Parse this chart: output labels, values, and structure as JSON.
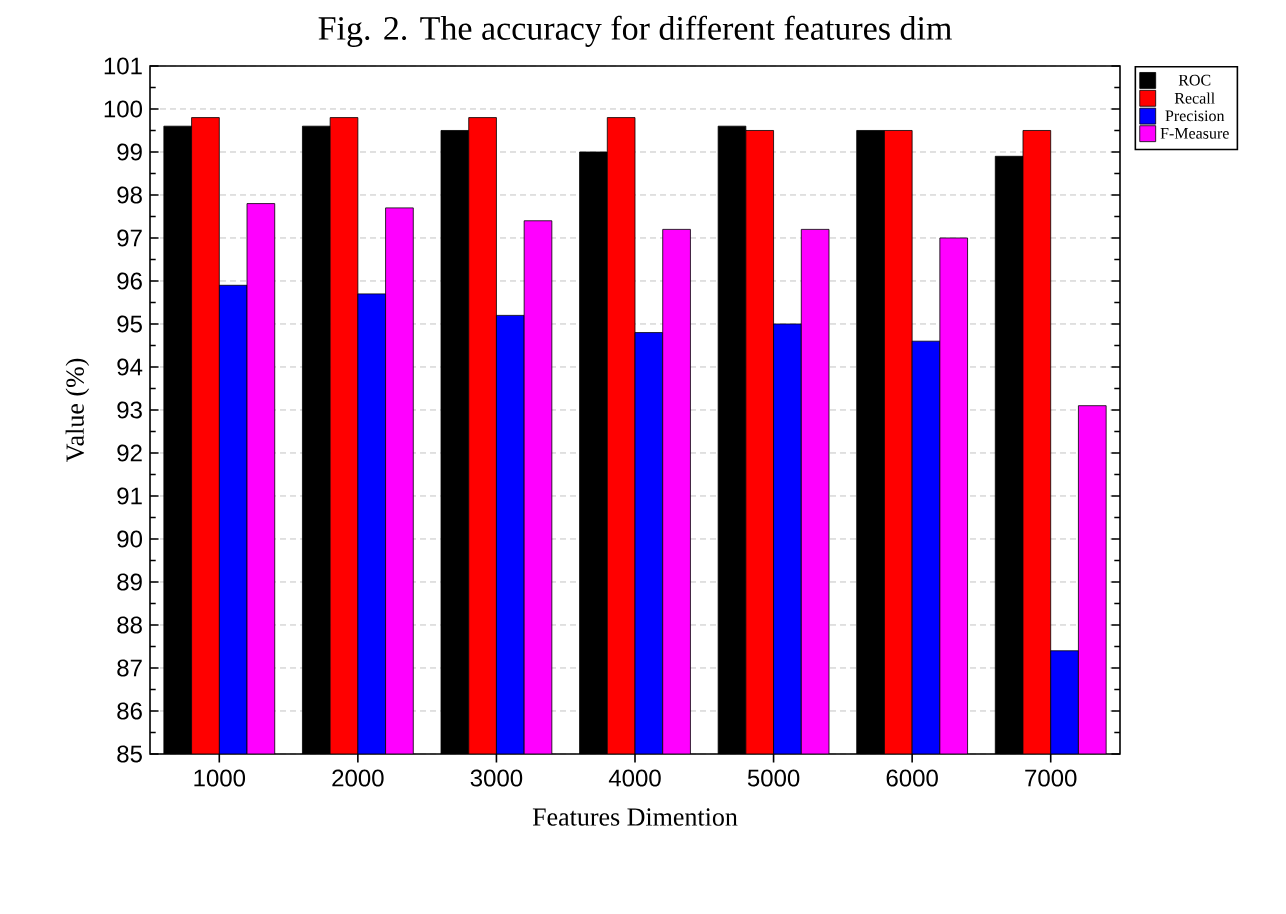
{
  "chart_data": {
    "type": "bar",
    "title": "Fig. 2. The accuracy for different features dim",
    "xlabel": "Features Dimention",
    "ylabel": "Value (%)",
    "categories": [
      "1000",
      "2000",
      "3000",
      "4000",
      "5000",
      "6000",
      "7000"
    ],
    "series": [
      {
        "name": "ROC",
        "color": "#000000",
        "values": [
          99.6,
          99.6,
          99.5,
          99.0,
          99.6,
          99.5,
          98.9
        ]
      },
      {
        "name": "Recall",
        "color": "#ff0000",
        "values": [
          99.8,
          99.8,
          99.8,
          99.8,
          99.5,
          99.5,
          99.5
        ]
      },
      {
        "name": "Precision",
        "color": "#0000ff",
        "values": [
          95.9,
          95.7,
          95.2,
          94.8,
          95.0,
          94.6,
          87.4
        ]
      },
      {
        "name": "F-Measure",
        "color": "#ff00ff",
        "values": [
          97.8,
          97.7,
          97.4,
          97.2,
          97.2,
          97.0,
          93.1
        ]
      }
    ],
    "ylim": [
      85,
      101
    ],
    "yticks": [
      85,
      86,
      87,
      88,
      89,
      90,
      91,
      92,
      93,
      94,
      95,
      96,
      97,
      98,
      99,
      100,
      101
    ],
    "grid": "y",
    "legend": "top right"
  }
}
